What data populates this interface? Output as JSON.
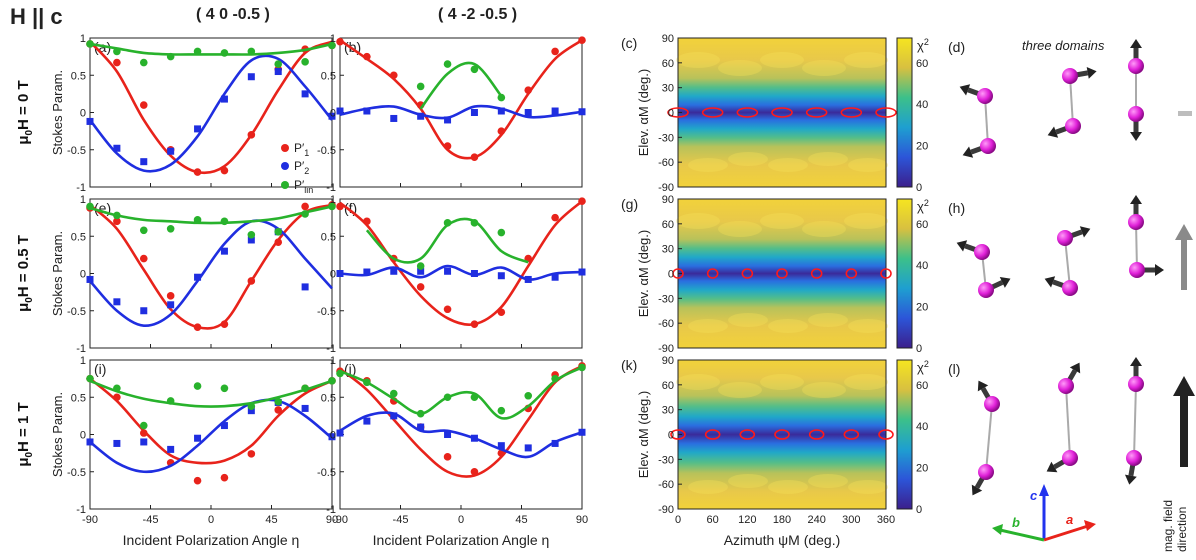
{
  "header": {
    "title": "H || c",
    "col1": "( 4 0 -0.5 )",
    "col2": "( 4 -2 -0.5 )"
  },
  "rows": [
    {
      "field_label": "μ0H = 0 T",
      "mu": "μ",
      "zero": "0",
      "rest": "H = 0 T"
    },
    {
      "field_label": "μ0H = 0.5 T",
      "mu": "μ",
      "zero": "0",
      "rest": "H = 0.5 T"
    },
    {
      "field_label": "μ0H = 1 T",
      "mu": "μ",
      "zero": "0",
      "rest": "H = 1 T"
    }
  ],
  "stokes_ylabel": "Stokes Param.",
  "stokes_xlabel": "Incident Polarization Angle η",
  "stokes_xticks": [
    "-90",
    "-45",
    "0",
    "45",
    "90"
  ],
  "stokes_yticks": [
    "-1",
    "-0.5",
    "0",
    "0.5",
    "1"
  ],
  "map_ylabel": "Elev. αM (deg.)",
  "map_xlabel": "Azimuth ψM (deg.)",
  "map_xticks": [
    "0",
    "60",
    "120",
    "180",
    "240",
    "300",
    "360"
  ],
  "map_yticks": [
    "90",
    "60",
    "30",
    "0",
    "-30",
    "-60",
    "-90"
  ],
  "cbar_ticks": [
    "0",
    "20",
    "40",
    "60"
  ],
  "cbar_label": "χ2",
  "three_domains": "three domains",
  "axes_labels": {
    "a": "a",
    "b": "b",
    "c": "c"
  },
  "mag_label_1": "mag. field",
  "mag_label_2": "direction",
  "colors": {
    "P1": "#e8231b",
    "P2": "#1f2ee0",
    "Plin": "#28b22c",
    "magenta": "#e020d8",
    "arrow": "#333333"
  },
  "legend": [
    {
      "key": "P1",
      "label": "P′1"
    },
    {
      "key": "P2",
      "label": "P′2"
    },
    {
      "key": "Plin",
      "label": "P′lin"
    }
  ],
  "chart_data": [
    {
      "id": "a",
      "panel_label": "(a)",
      "type": "line",
      "x": [
        -90,
        -70,
        -50,
        -30,
        -10,
        10,
        30,
        50,
        70,
        90
      ],
      "series": [
        {
          "name": "P′1",
          "key": "P1",
          "points": [
            0.92,
            0.67,
            0.1,
            -0.5,
            -0.8,
            -0.78,
            -0.3,
            0.58,
            0.85,
            0.9
          ],
          "curve": [
            0.95,
            0.55,
            -0.1,
            -0.58,
            -0.8,
            -0.72,
            -0.3,
            0.3,
            0.8,
            0.95
          ]
        },
        {
          "name": "P′2",
          "key": "P2",
          "points": [
            -0.12,
            -0.48,
            -0.66,
            -0.52,
            -0.22,
            0.18,
            0.48,
            0.55,
            0.25,
            -0.05
          ],
          "curve": [
            -0.1,
            -0.55,
            -0.78,
            -0.7,
            -0.32,
            0.25,
            0.7,
            0.72,
            0.35,
            -0.1
          ]
        },
        {
          "name": "P′lin",
          "key": "Plin",
          "points": [
            0.92,
            0.82,
            0.67,
            0.75,
            0.82,
            0.8,
            0.82,
            0.65,
            0.68,
            0.9
          ],
          "curve": [
            0.92,
            0.86,
            0.8,
            0.78,
            0.78,
            0.78,
            0.78,
            0.8,
            0.84,
            0.92
          ]
        }
      ],
      "xlim": [
        -90,
        90
      ],
      "ylim": [
        -1,
        1
      ]
    },
    {
      "id": "b",
      "panel_label": "(b)",
      "type": "line",
      "x": [
        -90,
        -70,
        -50,
        -30,
        -10,
        10,
        30,
        50,
        70,
        90
      ],
      "series": [
        {
          "name": "P′1",
          "key": "P1",
          "points": [
            0.95,
            0.75,
            0.5,
            0.1,
            -0.45,
            -0.6,
            -0.25,
            0.3,
            0.82,
            0.97
          ],
          "curve": [
            0.97,
            0.72,
            0.45,
            0.05,
            -0.5,
            -0.6,
            -0.3,
            0.25,
            0.72,
            0.97
          ]
        },
        {
          "name": "P′2",
          "key": "P2",
          "points": [
            0.02,
            0.02,
            -0.08,
            -0.05,
            -0.1,
            0.0,
            0.02,
            0.0,
            0.02,
            0.01
          ],
          "curve": [
            -0.03,
            0.05,
            0.08,
            -0.03,
            -0.07,
            0.08,
            0.05,
            -0.06,
            -0.04,
            0.01
          ]
        },
        {
          "name": "P′lin",
          "key": "Plin",
          "points": [
            null,
            null,
            null,
            0.35,
            0.65,
            0.58,
            0.2,
            null,
            null,
            null
          ],
          "curve": [
            null,
            null,
            null,
            0.05,
            0.52,
            0.65,
            0.22,
            null,
            null,
            null
          ]
        }
      ],
      "xlim": [
        -90,
        90
      ],
      "ylim": [
        -1,
        1
      ]
    },
    {
      "id": "e",
      "panel_label": "(e)",
      "type": "line",
      "x": [
        -90,
        -70,
        -50,
        -30,
        -10,
        10,
        30,
        50,
        70,
        90
      ],
      "series": [
        {
          "name": "P′1",
          "key": "P1",
          "points": [
            0.88,
            0.7,
            0.2,
            -0.3,
            -0.72,
            -0.68,
            -0.1,
            0.42,
            0.9,
            0.92
          ],
          "curve": [
            0.92,
            0.6,
            0.05,
            -0.48,
            -0.72,
            -0.65,
            -0.1,
            0.45,
            0.82,
            0.92
          ]
        },
        {
          "name": "P′2",
          "key": "P2",
          "points": [
            -0.08,
            -0.38,
            -0.5,
            -0.42,
            -0.05,
            0.3,
            0.45,
            0.56,
            -0.18,
            null
          ],
          "curve": [
            -0.1,
            -0.5,
            -0.7,
            -0.55,
            -0.1,
            0.4,
            0.7,
            0.6,
            0.2,
            -0.2
          ]
        },
        {
          "name": "P′lin",
          "key": "Plin",
          "points": [
            0.9,
            0.78,
            0.58,
            0.6,
            0.72,
            0.7,
            0.52,
            0.56,
            0.8,
            0.9
          ],
          "curve": [
            0.88,
            0.78,
            0.72,
            0.7,
            0.68,
            0.68,
            0.7,
            0.74,
            0.82,
            0.9
          ]
        }
      ],
      "xlim": [
        -90,
        90
      ],
      "ylim": [
        -1,
        1
      ]
    },
    {
      "id": "f",
      "panel_label": "(f)",
      "type": "line",
      "x": [
        -90,
        -70,
        -50,
        -30,
        -10,
        10,
        30,
        50,
        70,
        90
      ],
      "series": [
        {
          "name": "P′1",
          "key": "P1",
          "points": [
            0.9,
            0.7,
            0.2,
            -0.18,
            -0.48,
            -0.68,
            -0.52,
            0.2,
            0.75,
            0.97
          ],
          "curve": [
            0.95,
            0.65,
            0.15,
            -0.3,
            -0.6,
            -0.68,
            -0.45,
            0.1,
            0.65,
            0.97
          ]
        },
        {
          "name": "P′2",
          "key": "P2",
          "points": [
            0.0,
            0.02,
            0.03,
            0.03,
            0.03,
            0.0,
            -0.03,
            -0.08,
            -0.05,
            0.02
          ],
          "curve": [
            0.0,
            -0.02,
            0.08,
            -0.05,
            0.1,
            -0.02,
            0.08,
            -0.08,
            0.0,
            0.02
          ]
        },
        {
          "name": "P′lin",
          "key": "Plin",
          "points": [
            null,
            null,
            null,
            0.1,
            0.68,
            0.68,
            0.55,
            null,
            null,
            null
          ],
          "curve": [
            null,
            0.58,
            0.2,
            0.2,
            0.65,
            0.7,
            0.3,
            0.15,
            null,
            null
          ]
        }
      ],
      "xlim": [
        -90,
        90
      ],
      "ylim": [
        -1,
        1
      ]
    },
    {
      "id": "i",
      "panel_label": "(i)",
      "type": "line",
      "x": [
        -90,
        -70,
        -50,
        -30,
        -10,
        10,
        30,
        50,
        70,
        90
      ],
      "series": [
        {
          "name": "P′1",
          "key": "P1",
          "points": [
            0.75,
            0.5,
            0.02,
            -0.38,
            -0.62,
            -0.58,
            -0.26,
            0.33,
            0.62,
            0.72
          ],
          "curve": [
            0.75,
            0.45,
            0.05,
            -0.28,
            -0.38,
            -0.35,
            -0.15,
            0.25,
            0.55,
            0.72
          ]
        },
        {
          "name": "P′2",
          "key": "P2",
          "points": [
            -0.1,
            -0.12,
            -0.1,
            -0.2,
            -0.05,
            0.12,
            0.32,
            0.43,
            0.35,
            -0.03
          ],
          "curve": [
            -0.1,
            -0.38,
            -0.5,
            -0.42,
            -0.15,
            0.18,
            0.42,
            0.45,
            0.25,
            -0.05
          ]
        },
        {
          "name": "P′lin",
          "key": "Plin",
          "points": [
            0.75,
            0.62,
            0.12,
            0.45,
            0.65,
            0.62,
            0.38,
            0.44,
            0.62,
            0.72
          ],
          "curve": [
            0.72,
            0.58,
            0.48,
            0.42,
            0.38,
            0.38,
            0.42,
            0.5,
            0.6,
            0.72
          ]
        }
      ],
      "xlim": [
        -90,
        90
      ],
      "ylim": [
        -1,
        1
      ]
    },
    {
      "id": "j",
      "panel_label": "(j)",
      "type": "line",
      "x": [
        -90,
        -70,
        -50,
        -30,
        -10,
        10,
        30,
        50,
        70,
        90
      ],
      "series": [
        {
          "name": "P′1",
          "key": "P1",
          "points": [
            0.85,
            0.72,
            0.45,
            0.1,
            -0.3,
            -0.5,
            -0.25,
            0.35,
            0.8,
            0.92
          ],
          "curve": [
            0.88,
            0.6,
            0.2,
            -0.2,
            -0.5,
            -0.55,
            -0.3,
            0.2,
            0.7,
            0.92
          ]
        },
        {
          "name": "P′2",
          "key": "P2",
          "points": [
            0.02,
            0.18,
            0.25,
            0.1,
            0.0,
            -0.05,
            -0.15,
            -0.18,
            -0.12,
            0.03
          ],
          "curve": [
            0.05,
            0.25,
            0.28,
            0.05,
            0.05,
            -0.05,
            -0.2,
            -0.3,
            -0.1,
            0.03
          ]
        },
        {
          "name": "P′lin",
          "key": "Plin",
          "points": [
            0.82,
            0.7,
            0.55,
            0.28,
            0.5,
            0.5,
            0.32,
            0.52,
            0.75,
            0.9
          ],
          "curve": [
            0.85,
            0.7,
            0.48,
            0.28,
            0.5,
            0.55,
            0.22,
            0.38,
            0.72,
            0.9
          ]
        }
      ],
      "xlim": [
        -90,
        90
      ],
      "ylim": [
        -1,
        1
      ]
    }
  ],
  "maps": [
    {
      "id": "c",
      "panel_label": "(c)",
      "minima_azimuth": [
        0,
        60,
        120,
        180,
        240,
        300,
        360
      ],
      "minima_elev": 0
    },
    {
      "id": "g",
      "panel_label": "(g)",
      "minima_azimuth": [
        0,
        60,
        120,
        180,
        240,
        300,
        360
      ],
      "minima_elev": 0
    },
    {
      "id": "k",
      "panel_label": "(k)",
      "minima_azimuth": [
        0,
        60,
        120,
        180,
        240,
        300,
        360
      ],
      "minima_elev": 0
    }
  ],
  "domains": [
    {
      "id": "d",
      "panel_label": "(d)"
    },
    {
      "id": "h",
      "panel_label": "(h)"
    },
    {
      "id": "l",
      "panel_label": "(l)"
    }
  ]
}
